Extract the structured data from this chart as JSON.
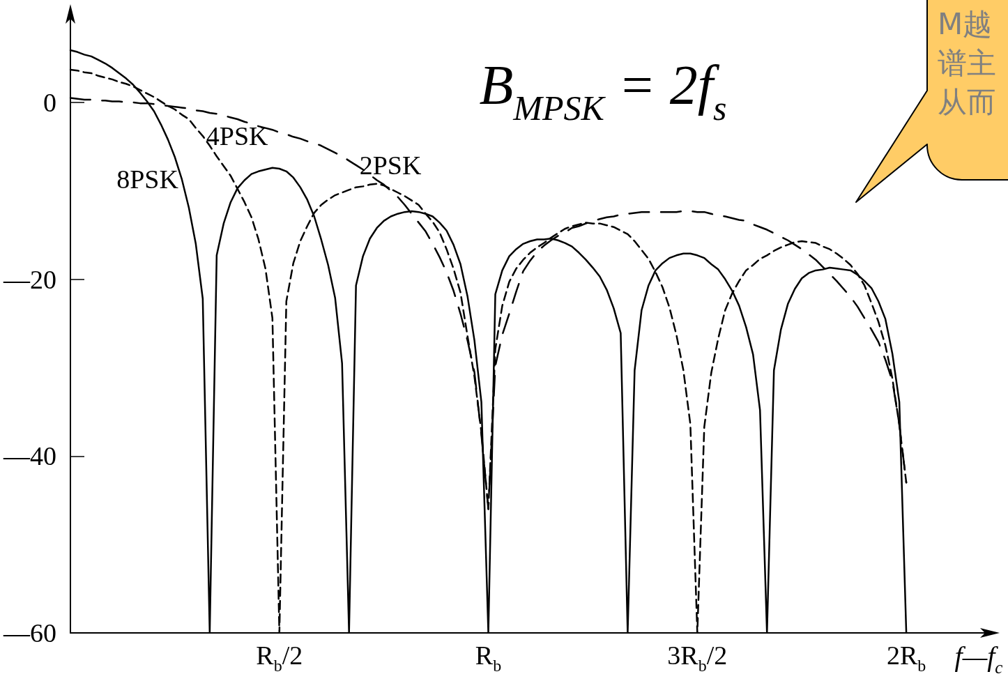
{
  "chart_data": {
    "type": "line",
    "annotations": [
      "B$_{MPSK}$ = 2f$_{s}$",
      "M越",
      "谱主",
      "从而"
    ],
    "xlabel": "f—f$_{c}$",
    "categories": [
      null,
      null,
      null,
      null,
      null,
      null,
      null,
      null,
      null,
      null,
      null,
      null,
      null,
      null,
      null,
      null,
      null,
      null,
      null,
      null,
      null,
      null,
      null,
      null,
      null,
      null,
      null,
      null,
      null,
      null,
      "R$_{b}$/2",
      null,
      null,
      null,
      null,
      null,
      null,
      null,
      null,
      null,
      null,
      null,
      null,
      null,
      null,
      null,
      null,
      null,
      null,
      null,
      null,
      null,
      null,
      null,
      null,
      null,
      null,
      null,
      null,
      null,
      "R$_{b}$",
      null,
      null,
      null,
      null,
      null,
      null,
      null,
      null,
      null,
      null,
      null,
      null,
      null,
      null,
      null,
      null,
      null,
      null,
      null,
      null,
      null,
      null,
      null,
      null,
      null,
      null,
      null,
      null,
      null,
      "3R$_{b}$/2",
      null,
      null,
      null,
      null,
      null,
      null,
      null,
      null,
      null,
      null,
      null,
      null,
      null,
      null,
      null,
      null,
      null,
      null,
      null,
      null,
      null,
      null,
      null,
      null,
      null,
      null,
      null,
      null,
      null,
      "2R$_{b}$",
      null,
      null,
      null,
      null,
      null,
      null,
      null,
      null,
      null,
      null,
      null,
      null
    ],
    "ylim": [
      -60,
      10
    ],
    "yticks": [
      0,
      {
        "value": -20,
        "label": "—20"
      },
      {
        "value": -40,
        "label": "—40"
      },
      {
        "value": -60,
        "label": "—60"
      }
    ],
    "marker": "none",
    "series": [
      {
        "name": "8PSK",
        "color": "#000000",
        "line_style": "solid",
        "values": [
          5.9,
          5.7,
          5.4,
          5.2,
          4.8,
          4.4,
          3.9,
          3.3,
          2.7,
          2.0,
          1.1,
          0.1,
          -1.0,
          -2.5,
          -4.2,
          -6.2,
          -8.7,
          -11.9,
          -16.0,
          -22.2,
          -60,
          -17.3,
          -13.7,
          -11.3,
          -9.7,
          -8.8,
          -8.1,
          -7.8,
          -7.6,
          -7.4,
          -7.5,
          -7.8,
          -8.5,
          -9.6,
          -11.0,
          -12.9,
          -15.5,
          -18.4,
          -22.1,
          -29.5,
          -60,
          -20.7,
          -17.4,
          -15.4,
          -14.2,
          -13.4,
          -12.9,
          -12.6,
          -12.4,
          -12.3,
          -12.4,
          -12.6,
          -12.9,
          -13.6,
          -14.5,
          -16.1,
          -18.3,
          -21.9,
          -26.9,
          -33.9,
          -60,
          -21.7,
          -19.0,
          -17.4,
          -16.6,
          -16.0,
          -15.7,
          -15.5,
          -15.5,
          -15.4,
          -15.6,
          -15.9,
          -16.3,
          -17.0,
          -17.8,
          -18.7,
          -19.7,
          -21.2,
          -23.3,
          -26.1,
          -60,
          -30.3,
          -23.5,
          -20.7,
          -19.0,
          -18.2,
          -17.6,
          -17.3,
          -17.1,
          -17.1,
          -17.3,
          -17.6,
          -18.3,
          -18.9,
          -20.0,
          -21.3,
          -23.0,
          -25.4,
          -28.5,
          -34.8,
          -60,
          -30.3,
          -25.7,
          -22.8,
          -21.1,
          -19.9,
          -19.3,
          -19.0,
          -18.9,
          -18.7,
          -18.8,
          -18.9,
          -19.0,
          -19.5,
          -20.2,
          -21.0,
          -22.5,
          -24.5,
          -28.4,
          -33.9,
          -60,
          null,
          null,
          null,
          null,
          null,
          null,
          null,
          null,
          null,
          null,
          null,
          null
        ]
      },
      {
        "name": "4PSK",
        "color": "#000000",
        "line_style": "dashed",
        "values": [
          3.7,
          3.6,
          3.4,
          3.3,
          3.0,
          2.8,
          2.6,
          2.3,
          2.1,
          1.8,
          1.4,
          1.0,
          0.6,
          0.1,
          -0.4,
          -0.8,
          -1.4,
          -1.9,
          -2.9,
          -3.8,
          -4.9,
          -6.1,
          -7.2,
          -8.3,
          -9.8,
          -11.3,
          -13.0,
          -15.5,
          -18.8,
          -24.4,
          -60,
          -22.5,
          -18.2,
          -15.7,
          -14.0,
          -12.5,
          -11.6,
          -11.0,
          -10.5,
          -10.2,
          -9.9,
          -9.6,
          -9.5,
          -9.3,
          -9.2,
          -9.4,
          -9.8,
          -10.2,
          -10.6,
          -11.1,
          -11.6,
          -12.6,
          -13.5,
          -14.7,
          -16.6,
          -18.8,
          -21.5,
          -26.4,
          -31.0,
          -37.3,
          -46,
          -27.9,
          -23.0,
          -20.3,
          -18.8,
          -17.8,
          -17.0,
          -16.4,
          -15.9,
          -15.3,
          -14.8,
          -14.3,
          -14.0,
          -13.8,
          -13.6,
          -13.7,
          -13.7,
          -13.9,
          -14.1,
          -14.5,
          -14.9,
          -15.7,
          -16.7,
          -17.7,
          -19.2,
          -20.9,
          -23.2,
          -26.3,
          -30.3,
          -36.4,
          -60,
          -36.7,
          -30.6,
          -26.7,
          -23.5,
          -21.6,
          -20.2,
          -19.0,
          -18.4,
          -17.7,
          -17.3,
          -16.8,
          -16.4,
          -16.1,
          -15.8,
          -15.7,
          -15.8,
          -15.9,
          -16.3,
          -16.6,
          -17.1,
          -17.7,
          -18.4,
          -19.4,
          -20.7,
          -22.7,
          -24.8,
          -27.5,
          -31.2,
          -36.5,
          -43,
          null,
          null,
          null,
          null,
          null,
          null,
          null,
          null,
          null,
          null,
          null,
          null
        ]
      },
      {
        "name": "2PSK",
        "color": "#000000",
        "line_style": "dashed",
        "values": [
          0.5,
          0.4,
          0.3,
          0.3,
          0.2,
          0.2,
          0.1,
          0.1,
          0.0,
          0.0,
          -0.1,
          -0.1,
          -0.2,
          -0.3,
          -0.4,
          -0.5,
          -0.6,
          -0.7,
          -0.9,
          -1.0,
          -1.2,
          -1.3,
          -1.5,
          -1.7,
          -1.9,
          -2.2,
          -2.4,
          -2.7,
          -2.9,
          -3.1,
          -3.4,
          -3.6,
          -3.9,
          -4.1,
          -4.4,
          -4.6,
          -4.9,
          -5.3,
          -5.7,
          -6.1,
          -6.6,
          -7.1,
          -7.6,
          -8.2,
          -8.8,
          -9.3,
          -10.0,
          -10.7,
          -11.6,
          -12.6,
          -13.6,
          -14.6,
          -16.0,
          -17.5,
          -19.2,
          -21.3,
          -23.9,
          -26.9,
          -30.5,
          -37.6,
          -46,
          -29.8,
          -26.3,
          -23.9,
          -21.4,
          -19.1,
          -17.9,
          -16.9,
          -16.2,
          -15.6,
          -15.1,
          -14.7,
          -14.2,
          -14.0,
          -13.7,
          -13.4,
          -13.2,
          -13.0,
          -12.9,
          -12.7,
          -12.6,
          -12.5,
          -12.4,
          -12.4,
          -12.4,
          -12.4,
          -12.4,
          -12.4,
          -12.3,
          -12.3,
          -12.4,
          -12.4,
          -12.6,
          -12.8,
          -12.9,
          -13.1,
          -13.3,
          -13.4,
          -13.8,
          -14.1,
          -14.4,
          -14.8,
          -15.2,
          -15.6,
          -16.1,
          -16.6,
          -17.2,
          -17.8,
          -18.6,
          -19.4,
          -20.2,
          -21.1,
          -22.0,
          -23.1,
          -24.4,
          -25.7,
          -27.1,
          -29.1,
          -31.5,
          -36.4,
          -43,
          null,
          null,
          null,
          null,
          null,
          null,
          null,
          null,
          null,
          null,
          null,
          null
        ]
      }
    ]
  }
}
